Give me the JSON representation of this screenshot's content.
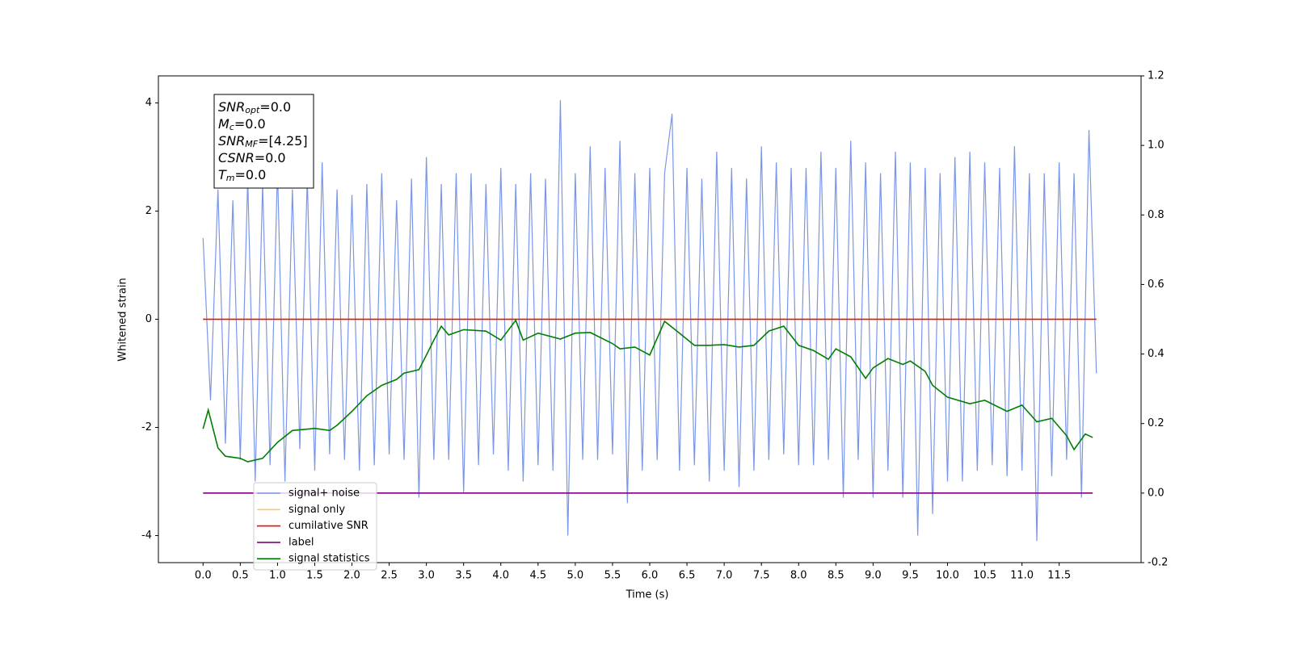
{
  "chart_data": {
    "type": "line",
    "xlabel": "Time (s)",
    "ylabel": "Whitened strain",
    "xlim": [
      -0.6,
      12.6
    ],
    "ylim": [
      -4.5,
      4.5
    ],
    "y2lim": [
      -0.2,
      1.2
    ],
    "xticks": [
      {
        "value": 0,
        "label": "0.0"
      },
      {
        "value": 0.5,
        "label": "0.5"
      },
      {
        "value": 1,
        "label": "1.0"
      },
      {
        "value": 1.5,
        "label": "1.5"
      },
      {
        "value": 2,
        "label": "2.0"
      },
      {
        "value": 2.5,
        "label": "2.5"
      },
      {
        "value": 3,
        "label": "3.0"
      },
      {
        "value": 3.5,
        "label": "3.5"
      },
      {
        "value": 4,
        "label": "4.0"
      },
      {
        "value": 4.5,
        "label": "4.5"
      },
      {
        "value": 5,
        "label": "5.0"
      },
      {
        "value": 5.5,
        "label": "5.5"
      },
      {
        "value": 6,
        "label": "6.0"
      },
      {
        "value": 6.5,
        "label": "6.5"
      },
      {
        "value": 7,
        "label": "7.0"
      },
      {
        "value": 7.5,
        "label": "7.5"
      },
      {
        "value": 8,
        "label": "8.0"
      },
      {
        "value": 8.5,
        "label": "8.5"
      },
      {
        "value": 9,
        "label": "9.0"
      },
      {
        "value": 9.5,
        "label": "9.5"
      },
      {
        "value": 10,
        "label": "10.0"
      },
      {
        "value": 10.5,
        "label": "10.5"
      },
      {
        "value": 11,
        "label": "11.0"
      },
      {
        "value": 11.5,
        "label": "11.5"
      }
    ],
    "yticks": [
      -4,
      -2,
      0,
      2,
      4
    ],
    "y2ticks": [
      -0.2,
      {
        "value": 0,
        "label": "0.0"
      },
      0.2,
      0.4,
      0.6,
      0.8,
      {
        "value": 1,
        "label": "1.0"
      },
      1.2
    ],
    "annotation": [
      {
        "var": "SNR",
        "sub": "opt",
        "text": "=0.0"
      },
      {
        "var": "M",
        "sub": "c",
        "text": "=0.0"
      },
      {
        "var": "SNR",
        "sub": "MF",
        "text": "=[4.25]"
      },
      {
        "var": "CSNR",
        "text": "=0.0"
      },
      {
        "var": "T",
        "sub": "m",
        "text": "=0.0"
      }
    ],
    "series": [
      {
        "name": "signal+ noise",
        "color": "#7a96e8",
        "axis": "y",
        "x": [
          0,
          0.1,
          0.2,
          0.3,
          0.4,
          0.5,
          0.6,
          0.7,
          0.8,
          0.9,
          1,
          1.1,
          1.2,
          1.3,
          1.4,
          1.5,
          1.6,
          1.7,
          1.8,
          1.9,
          2,
          2.1,
          2.2,
          2.3,
          2.4,
          2.5,
          2.6,
          2.7,
          2.8,
          2.9,
          3,
          3.1,
          3.2,
          3.3,
          3.4,
          3.5,
          3.6,
          3.7,
          3.8,
          3.9,
          4,
          4.1,
          4.2,
          4.3,
          4.4,
          4.5,
          4.6,
          4.7,
          4.8,
          4.9,
          5,
          5.1,
          5.2,
          5.3,
          5.4,
          5.5,
          5.6,
          5.7,
          5.8,
          5.9,
          6,
          6.1,
          6.2,
          6.3,
          6.4,
          6.5,
          6.6,
          6.7,
          6.8,
          6.9,
          7,
          7.1,
          7.2,
          7.3,
          7.4,
          7.5,
          7.6,
          7.7,
          7.8,
          7.9,
          8,
          8.1,
          8.2,
          8.3,
          8.4,
          8.5,
          8.6,
          8.7,
          8.8,
          8.9,
          9,
          9.1,
          9.2,
          9.3,
          9.4,
          9.5,
          9.6,
          9.7,
          9.8,
          9.9,
          10,
          10.1,
          10.2,
          10.3,
          10.4,
          10.5,
          10.6,
          10.7,
          10.8,
          10.9,
          11,
          11.1,
          11.2,
          11.3,
          11.4,
          11.5,
          11.6,
          11.7,
          11.8,
          11.9,
          12
        ],
        "values": [
          1.5,
          -1.5,
          2.4,
          -2.3,
          2.2,
          -2.6,
          2.6,
          -3.0,
          2.5,
          -2.7,
          2.8,
          -3.0,
          2.4,
          -2.4,
          2.6,
          -2.8,
          2.9,
          -2.5,
          2.4,
          -2.6,
          2.3,
          -2.8,
          2.5,
          -2.7,
          2.7,
          -2.5,
          2.2,
          -2.6,
          2.6,
          -3.3,
          3.0,
          -2.6,
          2.5,
          -2.6,
          2.7,
          -3.2,
          2.7,
          -2.7,
          2.5,
          -2.5,
          2.8,
          -2.8,
          2.5,
          -3.0,
          2.7,
          -2.7,
          2.6,
          -2.8,
          4.05,
          -4.0,
          2.7,
          -2.6,
          3.2,
          -2.6,
          2.8,
          -2.5,
          3.3,
          -3.4,
          2.7,
          -2.8,
          2.8,
          -2.6,
          2.7,
          3.8,
          -2.8,
          2.8,
          -2.7,
          2.6,
          -3.0,
          3.1,
          -2.8,
          2.8,
          -3.1,
          2.6,
          -2.8,
          3.2,
          -2.6,
          2.9,
          -2.5,
          2.8,
          -2.7,
          2.8,
          -2.7,
          3.1,
          -2.6,
          2.8,
          -3.3,
          3.3,
          -2.6,
          2.9,
          -3.3,
          2.7,
          -2.8,
          3.1,
          -3.3,
          2.9,
          -4.0,
          2.8,
          -3.6,
          2.7,
          -3.0,
          3.0,
          -3.0,
          3.1,
          -2.8,
          2.9,
          -2.7,
          2.8,
          -2.9,
          3.2,
          -2.8,
          2.7,
          -4.1,
          2.7,
          -2.9,
          2.9,
          -2.6,
          2.7,
          -3.3,
          3.5,
          -1.0
        ]
      },
      {
        "name": "signal only",
        "color": "#ffc870",
        "axis": "y",
        "x": [
          0,
          12
        ],
        "values": [
          0,
          0
        ]
      },
      {
        "name": "cumilative SNR",
        "color": "#ff0000",
        "axis": "y",
        "x": [
          0,
          12
        ],
        "values": [
          0,
          0
        ]
      },
      {
        "name": "label",
        "color": "#800080",
        "axis": "y2",
        "x": [
          0,
          11.95
        ],
        "values": [
          0,
          0
        ]
      },
      {
        "name": "signal statistics",
        "color": "#008000",
        "axis": "y2",
        "x": [
          0,
          0.07,
          0.2,
          0.3,
          0.5,
          0.6,
          0.8,
          1,
          1.2,
          1.5,
          1.7,
          1.8,
          2,
          2.2,
          2.4,
          2.6,
          2.7,
          2.9,
          3,
          3.1,
          3.2,
          3.3,
          3.5,
          3.8,
          4,
          4.2,
          4.3,
          4.5,
          4.8,
          5,
          5.2,
          5.5,
          5.6,
          5.8,
          6,
          6.2,
          6.4,
          6.6,
          6.8,
          7,
          7.2,
          7.4,
          7.6,
          7.8,
          8,
          8.2,
          8.4,
          8.5,
          8.7,
          8.9,
          9,
          9.2,
          9.4,
          9.5,
          9.7,
          9.8,
          10,
          10.3,
          10.5,
          10.8,
          11,
          11.2,
          11.4,
          11.6,
          11.7,
          11.85,
          11.95
        ],
        "values": [
          0.185,
          0.239,
          0.13,
          0.106,
          0.1,
          0.09,
          0.1,
          0.146,
          0.18,
          0.186,
          0.18,
          0.195,
          0.235,
          0.28,
          0.31,
          0.327,
          0.345,
          0.355,
          0.397,
          0.44,
          0.48,
          0.455,
          0.47,
          0.466,
          0.44,
          0.497,
          0.44,
          0.46,
          0.443,
          0.46,
          0.462,
          0.43,
          0.415,
          0.42,
          0.397,
          0.494,
          0.46,
          0.425,
          0.425,
          0.427,
          0.42,
          0.425,
          0.466,
          0.48,
          0.425,
          0.41,
          0.385,
          0.415,
          0.392,
          0.33,
          0.36,
          0.387,
          0.37,
          0.38,
          0.35,
          0.31,
          0.276,
          0.257,
          0.267,
          0.235,
          0.253,
          0.205,
          0.215,
          0.165,
          0.125,
          0.17,
          0.16
        ]
      }
    ]
  }
}
